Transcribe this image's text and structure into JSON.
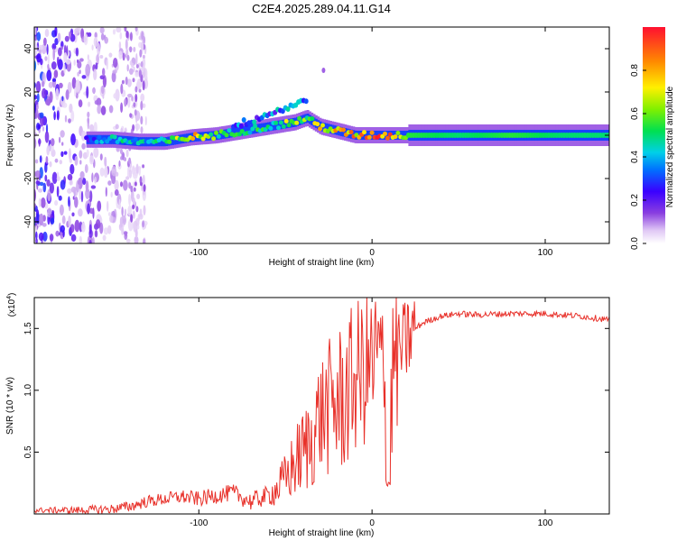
{
  "title": "C2E4.2025.289.04.11.G14",
  "chart_data": [
    {
      "type": "heatmap",
      "name": "spectrogram",
      "xlabel": "Height of straight line (km)",
      "ylabel": "Frequency (Hz)",
      "xlim": [
        -195,
        137
      ],
      "ylim": [
        -50,
        50
      ],
      "xticks": [
        -100,
        0,
        100
      ],
      "xtick_labels": [
        "-100",
        "0",
        "100"
      ],
      "yticks": [
        -40,
        -20,
        0,
        20,
        40
      ],
      "ytick_labels": [
        "-40",
        "-20",
        "0",
        "20",
        "40"
      ],
      "colorbar": {
        "label": "Normalized spectral amplitude",
        "range": [
          0,
          1
        ],
        "ticks": [
          0.0,
          0.2,
          0.4,
          0.6,
          0.8
        ],
        "tick_labels": [
          "0.0",
          "0.2",
          "0.4",
          "0.6",
          "0.8"
        ],
        "colors": [
          "#ffffff",
          "#d8b8f0",
          "#7b3fd6",
          "#2a00ff",
          "#0080ff",
          "#00e0e0",
          "#00e000",
          "#ffff00",
          "#ff8000",
          "#ff0000"
        ]
      },
      "ridge": [
        {
          "x": -165,
          "f": -2,
          "a": 0.25
        },
        {
          "x": -150,
          "f": -2,
          "a": 0.55
        },
        {
          "x": -135,
          "f": -3,
          "a": 0.45
        },
        {
          "x": -120,
          "f": -3,
          "a": 0.5
        },
        {
          "x": -105,
          "f": -1,
          "a": 0.85
        },
        {
          "x": -90,
          "f": 0,
          "a": 0.6
        },
        {
          "x": -75,
          "f": 2,
          "a": 0.5
        },
        {
          "x": -60,
          "f": 4,
          "a": 0.55
        },
        {
          "x": -45,
          "f": 6,
          "a": 0.7
        },
        {
          "x": -38,
          "f": 8,
          "a": 0.6
        },
        {
          "x": -30,
          "f": 4,
          "a": 0.75
        },
        {
          "x": -20,
          "f": 2,
          "a": 0.85
        },
        {
          "x": -10,
          "f": 0,
          "a": 0.85
        },
        {
          "x": 0,
          "f": 0,
          "a": 0.9
        },
        {
          "x": 10,
          "f": 0,
          "a": 0.95
        },
        {
          "x": 20,
          "f": 0,
          "a": 0.55
        },
        {
          "x": 50,
          "f": 0,
          "a": 0.5
        },
        {
          "x": 80,
          "f": 0,
          "a": 0.55
        },
        {
          "x": 110,
          "f": 0,
          "a": 0.5
        },
        {
          "x": 137,
          "f": 0,
          "a": 0.5
        }
      ]
    },
    {
      "type": "line",
      "name": "snr",
      "xlabel": "Height of straight line (km)",
      "ylabel": "SNR (10 * v/v)",
      "yscale_label": "(x10",
      "yscale_exponent": "4",
      "color": "#e8312a",
      "xlim": [
        -195,
        137
      ],
      "ylim": [
        0,
        1.75
      ],
      "xticks": [
        -100,
        0,
        100
      ],
      "xtick_labels": [
        "-100",
        "0",
        "100"
      ],
      "yticks": [
        0.5,
        1.0,
        1.5
      ],
      "ytick_labels": [
        "0.5",
        "1.0",
        "1.5"
      ],
      "series": [
        {
          "name": "SNR",
          "x": [
            -195,
            -170,
            -150,
            -140,
            -130,
            -120,
            -110,
            -100,
            -90,
            -80,
            -70,
            -60,
            -55,
            -50,
            -45,
            -40,
            -35,
            -30,
            -25,
            -20,
            -15,
            -10,
            -5,
            0,
            5,
            8,
            10,
            12,
            15,
            20,
            25,
            30,
            40,
            50,
            60,
            80,
            100,
            120,
            137
          ],
          "y": [
            0.03,
            0.03,
            0.04,
            0.06,
            0.1,
            0.12,
            0.14,
            0.12,
            0.15,
            0.17,
            0.1,
            0.15,
            0.2,
            0.28,
            0.4,
            0.5,
            0.6,
            0.8,
            0.85,
            0.9,
            0.95,
            1.1,
            1.15,
            1.2,
            1.3,
            0.7,
            0.25,
            1.2,
            1.3,
            1.4,
            1.5,
            1.55,
            1.6,
            1.62,
            1.61,
            1.62,
            1.62,
            1.6,
            1.57
          ]
        }
      ]
    }
  ]
}
